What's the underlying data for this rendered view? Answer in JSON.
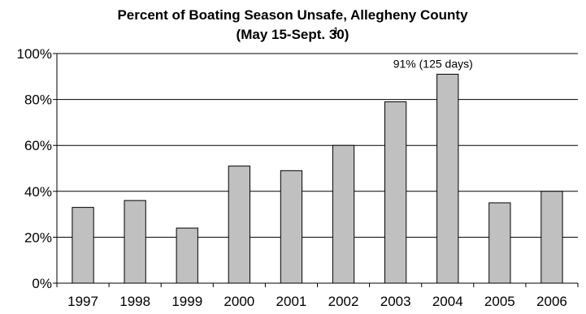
{
  "chart_data": {
    "type": "bar",
    "title_line1": "Percent of Boating Season Unsafe, Allegheny County",
    "title_line2": "(May 15-Sept. 30)",
    "title_footnote": "1",
    "categories": [
      "1997",
      "1998",
      "1999",
      "2000",
      "2001",
      "2002",
      "2003",
      "2004",
      "2005",
      "2006"
    ],
    "values": [
      33,
      36,
      24,
      51,
      49,
      60,
      79,
      91,
      35,
      40
    ],
    "ylim": [
      0,
      100
    ],
    "yticks": [
      "0%",
      "20%",
      "40%",
      "60%",
      "80%",
      "100%"
    ],
    "ytick_values": [
      0,
      20,
      40,
      60,
      80,
      100
    ],
    "grid": true,
    "legend": "none",
    "bar_color": "#c0c0c0",
    "annotation": {
      "category": "2004",
      "text": "91% (125 days)"
    }
  }
}
